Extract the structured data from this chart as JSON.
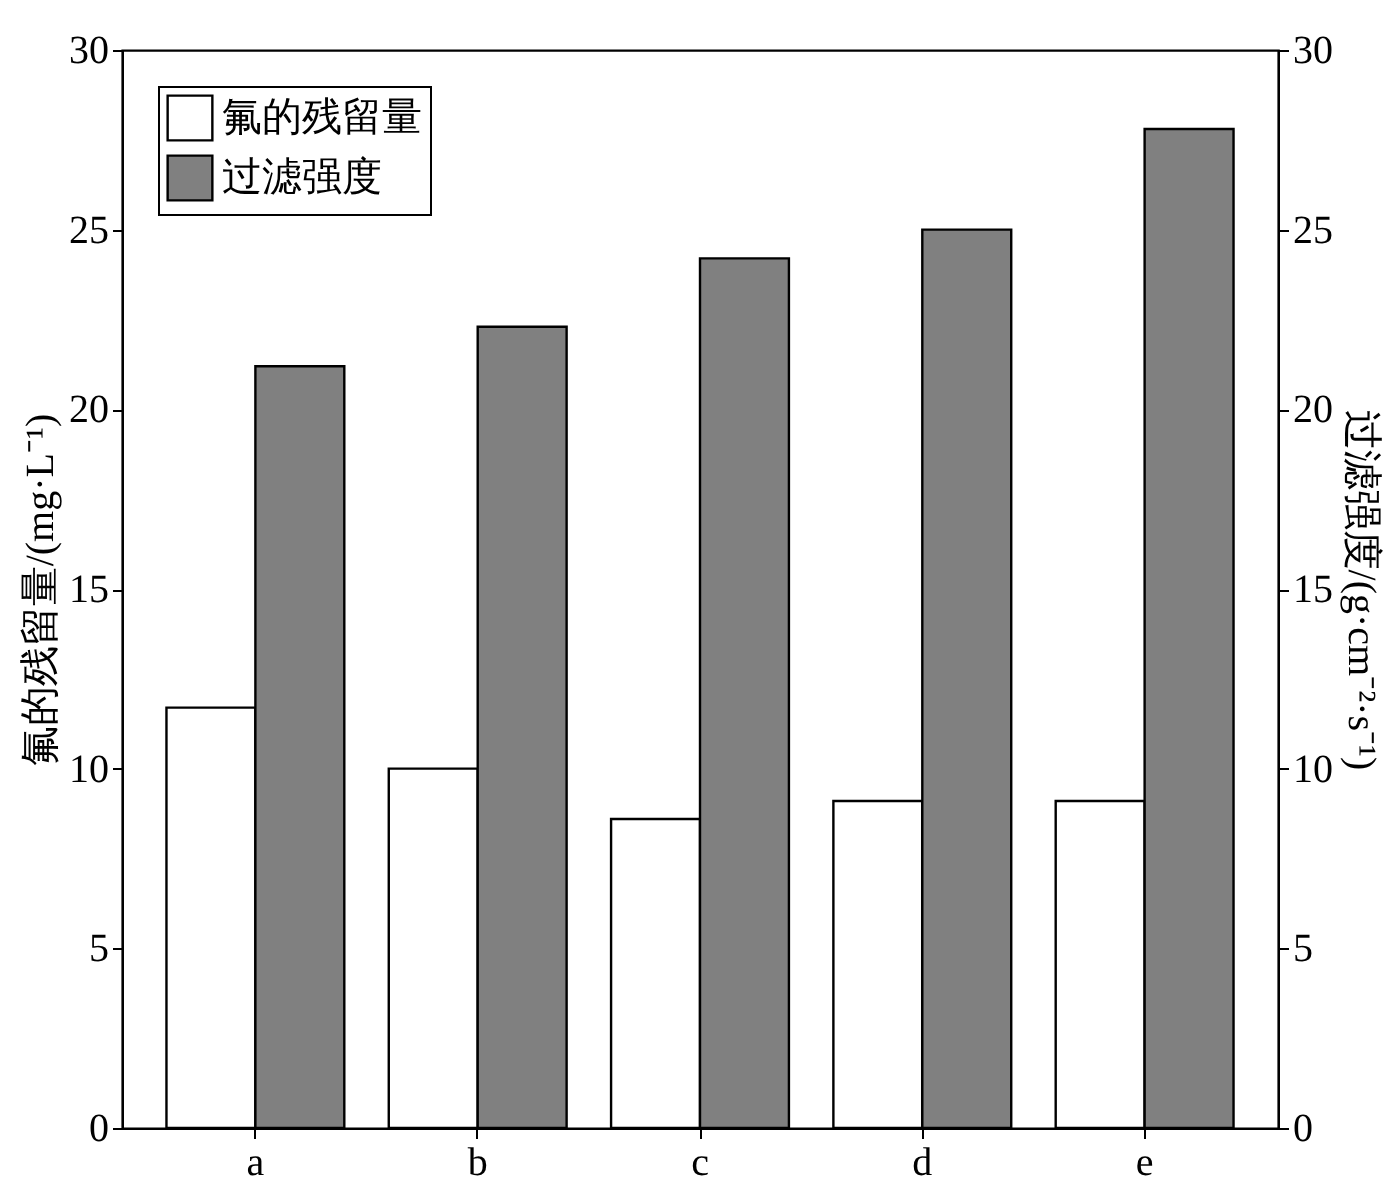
{
  "chart_data": {
    "type": "bar",
    "categories": [
      "a",
      "b",
      "c",
      "d",
      "e"
    ],
    "ylabel": "氟的残留量/(mg·L⁻¹)",
    "y2label": "过滤强度/(g·cm⁻²·s⁻¹)",
    "series": [
      {
        "name": "氟的残留量",
        "color": "#ffffff",
        "values": [
          11.7,
          10.0,
          8.6,
          9.1,
          9.1
        ]
      },
      {
        "name": "过滤强度",
        "color": "#808080",
        "axis": "y2",
        "values": [
          21.2,
          22.3,
          24.2,
          25.0,
          27.8
        ]
      }
    ],
    "ylim": [
      0,
      30
    ],
    "yticks": [
      0,
      5,
      10,
      15,
      20,
      25,
      30
    ],
    "y2lim": [
      0,
      30
    ],
    "y2ticks": [
      0,
      5,
      10,
      15,
      20,
      25,
      30
    ],
    "legend": "top left",
    "grid": false
  }
}
